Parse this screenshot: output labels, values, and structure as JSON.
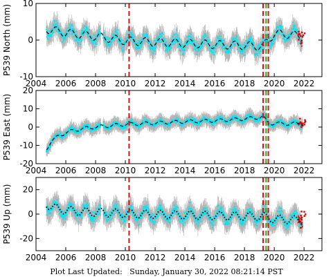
{
  "footer": {
    "label": "Plot Last Updated:",
    "value": "Sunday, January 30, 2022 08:21:14 PST"
  },
  "colors": {
    "errorbar": "#b4b4b4",
    "data": "#00e5f5",
    "model": "#000000",
    "recent": "#e00000",
    "event_red": "#dd1111",
    "event_green": "#22aa22"
  },
  "chart_data": [
    {
      "type": "scatter",
      "ylabel": "P539 North (mm)",
      "xlim": [
        2004.0,
        2023.2
      ],
      "ylim": [
        -10,
        10
      ],
      "xticks": [
        "2004",
        "2006",
        "2008",
        "2010",
        "2012",
        "2014",
        "2016",
        "2018",
        "2020",
        "2022"
      ],
      "yticks": [
        "-10",
        "0",
        "10"
      ],
      "vlines": [
        {
          "x": 2010.25,
          "color": "red"
        },
        {
          "x": 2019.25,
          "color": "red"
        },
        {
          "x": 2019.45,
          "color": "green"
        },
        {
          "x": 2019.6,
          "color": "red"
        }
      ],
      "model": {
        "style": "dashed",
        "x": [
          2004.7,
          2006,
          2008,
          2010,
          2012,
          2014,
          2016,
          2018,
          2019.25,
          2020,
          2021,
          2021.9
        ],
        "y": [
          3.0,
          2.0,
          1.0,
          -0.2,
          -0.6,
          -0.9,
          -1.2,
          -1.5,
          -1.7,
          1.8,
          1.5,
          1.0
        ]
      },
      "seasonal_amplitude": 1.5,
      "scatter_sd": 1.4,
      "errorbar_half": 2.2,
      "recent_points": {
        "x_from": 2021.6,
        "x_to": 2022.1,
        "y_center": 1.0
      }
    },
    {
      "type": "scatter",
      "ylabel": "P539 East (mm)",
      "xlim": [
        2004.0,
        2023.2
      ],
      "ylim": [
        -20,
        20
      ],
      "xticks": [
        "2004",
        "2006",
        "2008",
        "2010",
        "2012",
        "2014",
        "2016",
        "2018",
        "2020",
        "2022"
      ],
      "yticks": [
        "-20",
        "-10",
        "0",
        "10",
        "20"
      ],
      "vlines": [
        {
          "x": 2010.25,
          "color": "red"
        },
        {
          "x": 2019.25,
          "color": "red"
        },
        {
          "x": 2019.45,
          "color": "green"
        },
        {
          "x": 2019.6,
          "color": "red"
        }
      ],
      "model": {
        "style": "dashed",
        "x": [
          2004.7,
          2005.0,
          2005.5,
          2006,
          2007,
          2008,
          2010,
          2012,
          2014,
          2016,
          2018,
          2019.25,
          2019.6,
          2020,
          2021,
          2021.9
        ],
        "y": [
          -12.0,
          -8.0,
          -5.0,
          -3.0,
          -1.0,
          0.0,
          1.5,
          2.2,
          3.0,
          3.5,
          4.5,
          5.5,
          2.2,
          2.0,
          1.8,
          2.0
        ]
      },
      "seasonal_amplitude": 1.2,
      "scatter_sd": 1.3,
      "errorbar_half": 3.0,
      "recent_points": {
        "x_from": 2021.6,
        "x_to": 2022.1,
        "y_center": 2.5
      }
    },
    {
      "type": "scatter",
      "ylabel": "P539 Up (mm)",
      "xlim": [
        2004.0,
        2023.2
      ],
      "ylim": [
        -30,
        30
      ],
      "xticks": [
        "2004",
        "2006",
        "2008",
        "2010",
        "2012",
        "2014",
        "2016",
        "2018",
        "2020",
        "2022"
      ],
      "yticks": [
        "-20",
        "0",
        "20"
      ],
      "vlines": [
        {
          "x": 2010.25,
          "color": "red"
        },
        {
          "x": 2019.25,
          "color": "red"
        },
        {
          "x": 2019.45,
          "color": "green"
        },
        {
          "x": 2019.6,
          "color": "red"
        }
      ],
      "model": {
        "style": "dotted",
        "x": [
          2004.7,
          2005.5,
          2007,
          2009,
          2011,
          2013,
          2015,
          2017,
          2019.25,
          2020,
          2021,
          2021.9
        ],
        "y": [
          8.0,
          4.0,
          2.0,
          1.0,
          0.0,
          -0.5,
          -1.0,
          -1.5,
          -2.0,
          -4.0,
          -4.5,
          -5.0
        ]
      },
      "seasonal_amplitude": 4.5,
      "scatter_sd": 4.0,
      "errorbar_half": 7.0,
      "recent_points": {
        "x_from": 2021.6,
        "x_to": 2022.1,
        "y_center": -4.0
      }
    }
  ]
}
